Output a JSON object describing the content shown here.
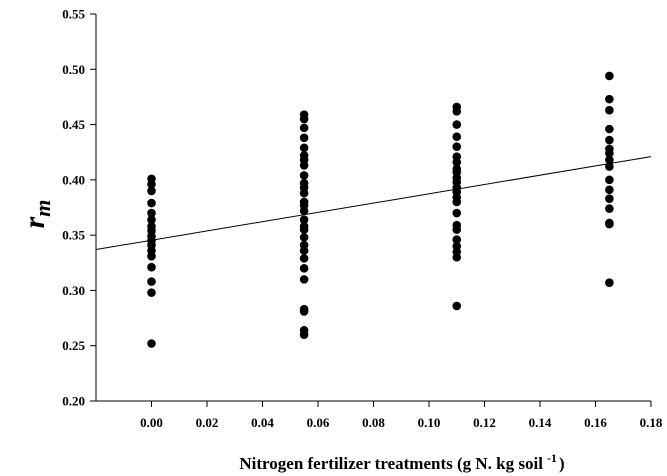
{
  "chart_data": {
    "type": "scatter",
    "title": "",
    "xlabel": "Nitrogen fertilizer treatments (g N. kg soil",
    "xlabel_superscript": "-1",
    "xlabel_end": ")",
    "ylabel_base": "r",
    "ylabel_sub": "m",
    "xlim": [
      -0.02,
      0.18
    ],
    "ylim": [
      0.2,
      0.55
    ],
    "x_ticks": [
      "0.00",
      "0.02",
      "0.04",
      "0.06",
      "0.08",
      "0.10",
      "0.12",
      "0.14",
      "0.16",
      "0.18"
    ],
    "y_ticks": [
      "0.20",
      "0.25",
      "0.30",
      "0.35",
      "0.40",
      "0.45",
      "0.50",
      "0.55"
    ],
    "grid": false,
    "series": [
      {
        "marker": "filled-circle",
        "color": "#000000",
        "points": [
          [
            0.0,
            0.401
          ],
          [
            0.0,
            0.396
          ],
          [
            0.0,
            0.39
          ],
          [
            0.0,
            0.379
          ],
          [
            0.0,
            0.37
          ],
          [
            0.0,
            0.364
          ],
          [
            0.0,
            0.358
          ],
          [
            0.0,
            0.354
          ],
          [
            0.0,
            0.349
          ],
          [
            0.0,
            0.345
          ],
          [
            0.0,
            0.341
          ],
          [
            0.0,
            0.336
          ],
          [
            0.0,
            0.331
          ],
          [
            0.0,
            0.321
          ],
          [
            0.0,
            0.308
          ],
          [
            0.0,
            0.298
          ],
          [
            0.0,
            0.252
          ],
          [
            0.055,
            0.459
          ],
          [
            0.055,
            0.455
          ],
          [
            0.055,
            0.447
          ],
          [
            0.055,
            0.438
          ],
          [
            0.055,
            0.429
          ],
          [
            0.055,
            0.422
          ],
          [
            0.055,
            0.418
          ],
          [
            0.055,
            0.413
          ],
          [
            0.055,
            0.404
          ],
          [
            0.055,
            0.397
          ],
          [
            0.055,
            0.393
          ],
          [
            0.055,
            0.388
          ],
          [
            0.055,
            0.38
          ],
          [
            0.055,
            0.377
          ],
          [
            0.055,
            0.372
          ],
          [
            0.055,
            0.364
          ],
          [
            0.055,
            0.358
          ],
          [
            0.055,
            0.355
          ],
          [
            0.055,
            0.348
          ],
          [
            0.055,
            0.341
          ],
          [
            0.055,
            0.336
          ],
          [
            0.055,
            0.329
          ],
          [
            0.055,
            0.32
          ],
          [
            0.055,
            0.31
          ],
          [
            0.055,
            0.283
          ],
          [
            0.055,
            0.281
          ],
          [
            0.055,
            0.264
          ],
          [
            0.055,
            0.26
          ],
          [
            0.11,
            0.466
          ],
          [
            0.11,
            0.462
          ],
          [
            0.11,
            0.45
          ],
          [
            0.11,
            0.439
          ],
          [
            0.11,
            0.43
          ],
          [
            0.11,
            0.421
          ],
          [
            0.11,
            0.416
          ],
          [
            0.11,
            0.41
          ],
          [
            0.11,
            0.407
          ],
          [
            0.11,
            0.402
          ],
          [
            0.11,
            0.398
          ],
          [
            0.11,
            0.393
          ],
          [
            0.11,
            0.389
          ],
          [
            0.11,
            0.384
          ],
          [
            0.11,
            0.38
          ],
          [
            0.11,
            0.37
          ],
          [
            0.11,
            0.359
          ],
          [
            0.11,
            0.355
          ],
          [
            0.11,
            0.346
          ],
          [
            0.11,
            0.34
          ],
          [
            0.11,
            0.335
          ],
          [
            0.11,
            0.33
          ],
          [
            0.11,
            0.286
          ],
          [
            0.165,
            0.494
          ],
          [
            0.165,
            0.473
          ],
          [
            0.165,
            0.463
          ],
          [
            0.165,
            0.446
          ],
          [
            0.165,
            0.436
          ],
          [
            0.165,
            0.428
          ],
          [
            0.165,
            0.424
          ],
          [
            0.165,
            0.418
          ],
          [
            0.165,
            0.412
          ],
          [
            0.165,
            0.4
          ],
          [
            0.165,
            0.391
          ],
          [
            0.165,
            0.383
          ],
          [
            0.165,
            0.374
          ],
          [
            0.165,
            0.361
          ],
          [
            0.165,
            0.36
          ],
          [
            0.165,
            0.307
          ]
        ]
      }
    ],
    "regression_line": {
      "x": [
        -0.02,
        0.18
      ],
      "y": [
        0.337,
        0.421
      ]
    }
  }
}
